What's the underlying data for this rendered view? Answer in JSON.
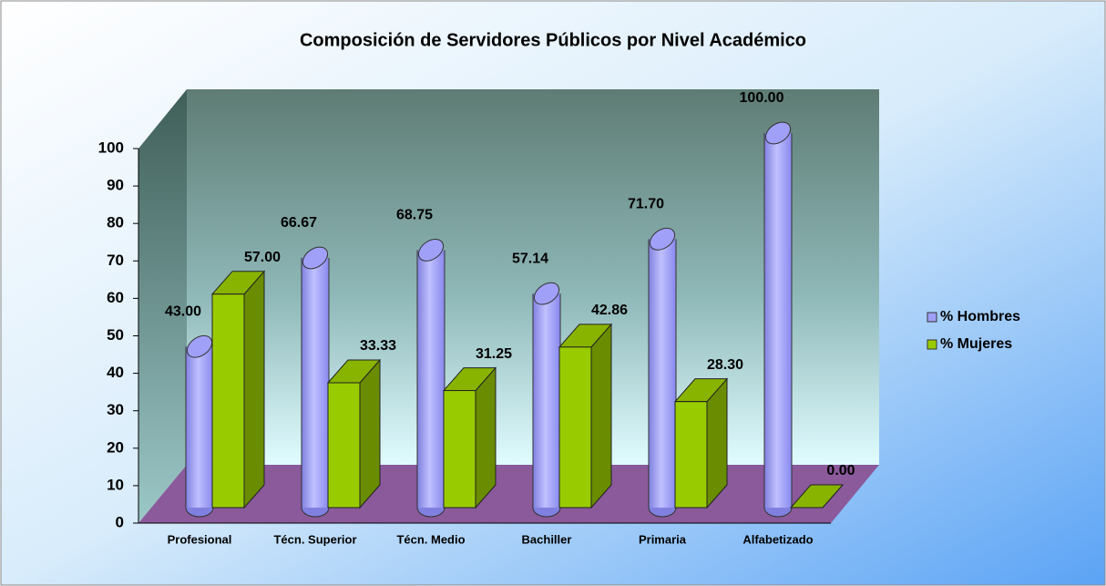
{
  "chart_data": {
    "type": "bar3d",
    "title": "Composición de Servidores Públicos por Nivel Académico",
    "categories": [
      "Profesional",
      "Técn. Superior",
      "Técn. Medio",
      "Bachiller",
      "Primaria",
      "Alfabetizado"
    ],
    "series": [
      {
        "name": "% Hombres",
        "color": "#a0a0f8",
        "shape": "cylinder",
        "values": [
          43,
          66.67,
          68.75,
          57.14,
          71.7,
          100
        ],
        "value_labels": [
          "43.00",
          "66.67",
          "68.75",
          "57.14",
          "71.70",
          "100.00"
        ]
      },
      {
        "name": "% Mujeres",
        "color": "#99cc00",
        "shape": "box",
        "values": [
          57,
          33.33,
          31.25,
          42.86,
          28.3,
          0
        ],
        "value_labels": [
          "57.00",
          "33.33",
          "31.25",
          "42.86",
          "28.30",
          "0.00"
        ]
      }
    ],
    "ylim": [
      0,
      100
    ],
    "yticks": [
      0,
      10,
      20,
      30,
      40,
      50,
      60,
      70,
      80,
      90,
      100
    ],
    "legend": "right"
  }
}
